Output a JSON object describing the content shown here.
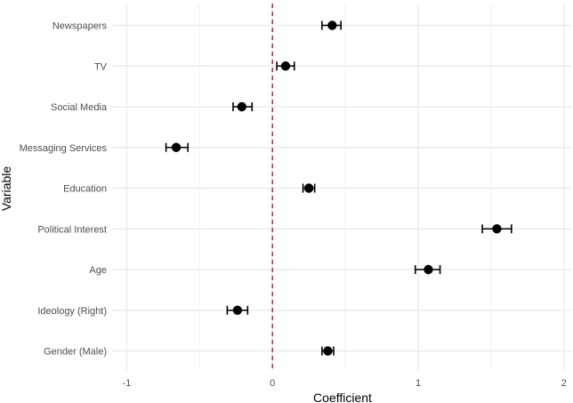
{
  "chart_data": {
    "type": "scatter",
    "subtype": "coefficient-plot-with-error-bars",
    "title": "",
    "xlabel": "Coefficient",
    "ylabel": "Variable",
    "xlim": [
      -1.1,
      2.05
    ],
    "xticks": [
      -1,
      0,
      1,
      2
    ],
    "xtick_labels": [
      "-1",
      "0",
      "1",
      "2"
    ],
    "reference_line": {
      "x": 0,
      "style": "dashed",
      "color": "#b2182b"
    },
    "grid": true,
    "categories": [
      "Newspapers",
      "TV",
      "Social Media",
      "Messaging Services",
      "Education",
      "Political Interest",
      "Age",
      "Ideology (Right)",
      "Gender (Male)"
    ],
    "estimates": [
      0.41,
      0.09,
      -0.21,
      -0.66,
      0.25,
      1.54,
      1.07,
      -0.24,
      0.38
    ],
    "ci_low": [
      0.34,
      0.03,
      -0.27,
      -0.73,
      0.21,
      1.44,
      0.98,
      -0.31,
      0.34
    ],
    "ci_high": [
      0.47,
      0.15,
      -0.14,
      -0.58,
      0.29,
      1.64,
      1.15,
      -0.17,
      0.42
    ]
  },
  "colors": {
    "point": "#000000",
    "grid": "#ebebeb",
    "reference": "#b2182b"
  }
}
